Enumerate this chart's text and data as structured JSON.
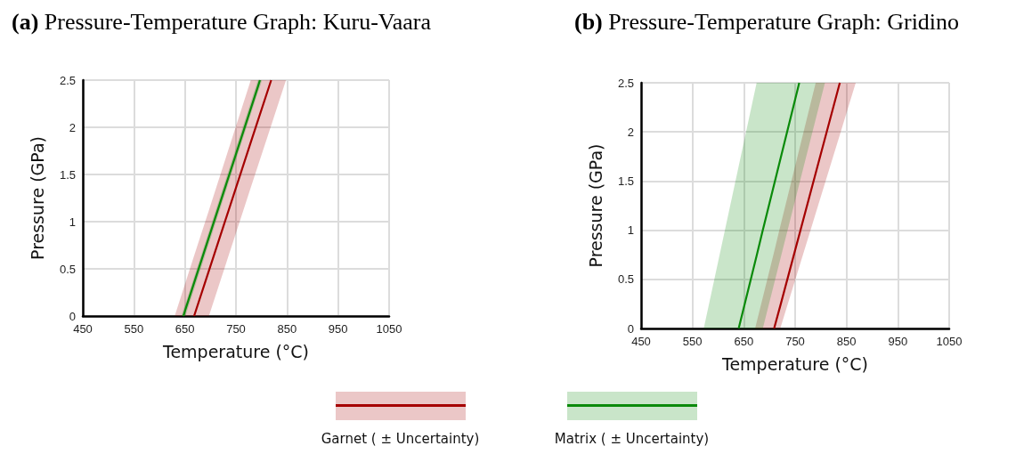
{
  "chart_data": [
    {
      "type": "line",
      "title": "(a) Pressure-Temperature Graph: Kuru-Vaara",
      "xlabel": "Temperature (°C)",
      "ylabel": "Pressure (GPa)",
      "xlim": [
        450,
        1050
      ],
      "xticks": [
        450,
        550,
        650,
        750,
        850,
        950,
        1050
      ],
      "ylim": [
        0,
        2.5
      ],
      "yticks": [
        0,
        0.5,
        1,
        1.5,
        2,
        2.5
      ],
      "grid": true,
      "legend": "bottom",
      "series": [
        {
          "name": "Garnet ( ± Uncertainty)",
          "color": "#a50000",
          "x": [
            630,
            668,
            697,
            779,
            819,
            848
          ],
          "values": [
            null,
            0,
            0.48,
            1.84,
            2.5,
            null
          ],
          "lower": [
            0,
            0,
            0,
            1.36,
            2.02,
            2.5
          ],
          "upper": [
            0,
            0.64,
            1.12,
            2.5,
            2.5,
            2.5
          ]
        },
        {
          "name": "Matrix ( ± Uncertainty)",
          "color": "#0a8a0a",
          "x": [
            643,
            647,
            651,
            793,
            797,
            801
          ],
          "values": [
            null,
            0,
            0.07,
            2.43,
            2.5,
            null
          ],
          "lower": [
            0,
            0,
            0,
            2.37,
            2.43,
            2.5
          ],
          "upper": [
            0,
            0.07,
            0.13,
            2.5,
            2.5,
            2.5
          ]
        }
      ]
    },
    {
      "type": "line",
      "title": "(b) Pressure-Temperature Graph: Gridino",
      "xlabel": "Temperature (°C)",
      "ylabel": "Pressure (GPa)",
      "xlim": [
        450,
        1050
      ],
      "xticks": [
        450,
        550,
        650,
        750,
        850,
        950,
        1050
      ],
      "ylim": [
        0,
        2.5
      ],
      "yticks": [
        0,
        0.5,
        1,
        1.5,
        2,
        2.5
      ],
      "grid": true,
      "series": [
        {
          "color": "#a50000",
          "x": [
            672,
            709,
            721,
            790,
            837,
            868
          ],
          "values": [
            null,
            0,
            0.23,
            1.58,
            2.5,
            null
          ],
          "lower": [
            0,
            0,
            0,
            1.17,
            1.97,
            2.5
          ],
          "upper": [
            0,
            0.78,
            1.04,
            2.5,
            2.5,
            2.5
          ]
        },
        {
          "color": "#0a8a0a",
          "x": [
            572,
            640,
            675,
            687,
            758,
            808
          ],
          "values": [
            null,
            0,
            0.74,
            1.0,
            2.5,
            null
          ],
          "lower": [
            0,
            0,
            0,
            0,
            1.47,
            2.5
          ],
          "upper": [
            0,
            1.65,
            2.5,
            2.5,
            2.5,
            2.5
          ]
        }
      ]
    }
  ]
}
